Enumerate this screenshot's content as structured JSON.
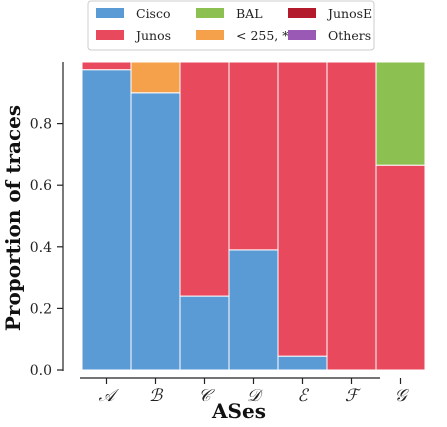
{
  "chart_data": {
    "type": "bar",
    "stacked": true,
    "categories": [
      "𝒜",
      "ℬ",
      "𝒞",
      "𝒟",
      "ℰ",
      "ℱ",
      "𝒢"
    ],
    "xlabel": "ASes",
    "ylabel": "Proportion of traces",
    "ylim": [
      0,
      1
    ],
    "yticks": [
      "0.0",
      "0.2",
      "0.4",
      "0.6",
      "0.8"
    ],
    "ytick_values": [
      0,
      0.2,
      0.4,
      0.6,
      0.8
    ],
    "grid": false,
    "legend_position": "top",
    "series": [
      {
        "name": "Cisco",
        "color": "#5b9bd5",
        "values": [
          0.975,
          0.9,
          0.24,
          0.39,
          0.045,
          0.0,
          0.0
        ]
      },
      {
        "name": "Junos",
        "color": "#e8495d",
        "values": [
          0.025,
          0.0,
          0.76,
          0.61,
          0.955,
          1.0,
          0.665
        ]
      },
      {
        "name": "BAL",
        "color": "#8cc152",
        "values": [
          0.0,
          0.0,
          0.0,
          0.0,
          0.0,
          0.0,
          0.335
        ]
      },
      {
        "name": "< 255, * >",
        "color": "#f5a04a",
        "values": [
          0.0,
          0.1,
          0.0,
          0.0,
          0.0,
          0.0,
          0.0
        ]
      },
      {
        "name": "JunosE",
        "color": "#b31b2c",
        "values": [
          0,
          0,
          0,
          0,
          0,
          0,
          0
        ]
      },
      {
        "name": "Others",
        "color": "#9b59b6",
        "values": [
          0,
          0,
          0,
          0,
          0,
          0,
          0
        ]
      }
    ]
  }
}
